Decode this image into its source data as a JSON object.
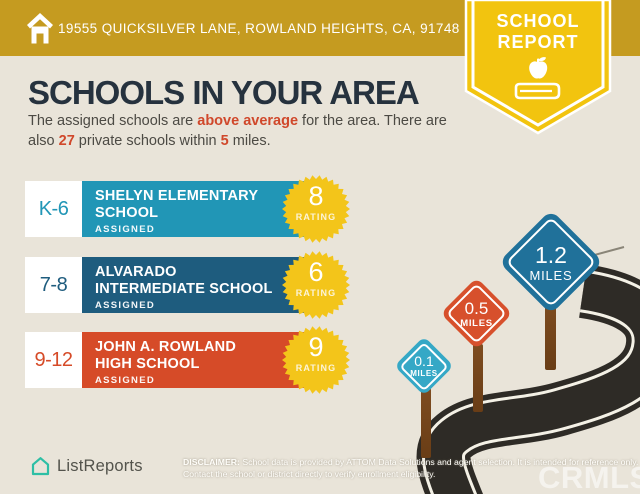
{
  "colors": {
    "header_gold": "#C59B20",
    "badge_yellow": "#F2C40F",
    "page_background": "#E9E4D9",
    "title_navy": "#26323E",
    "body_text": "#4C4A44",
    "accent_red": "#D0482B",
    "rating_star_yellow": "#F3C51A",
    "road_dark": "#2E2B26",
    "post_brown": "#7B4A1F",
    "brand_teal": "#2EBFA5"
  },
  "header": {
    "address": "19555 QUICKSILVER LANE, ROWLAND HEIGHTS, CA, 91748"
  },
  "badge": {
    "line1": "SCHOOL",
    "line2": "REPORT"
  },
  "main": {
    "title": "SCHOOLS IN YOUR AREA",
    "subtitle": {
      "line1": [
        {
          "text": "The assigned schools are ",
          "accent": false
        },
        {
          "text": "above average",
          "accent": true
        },
        {
          "text": " for the area. There are",
          "accent": false
        }
      ],
      "line2": [
        {
          "text": "also ",
          "accent": false
        },
        {
          "text": "27",
          "accent": true
        },
        {
          "text": " private schools within ",
          "accent": false
        },
        {
          "text": "5",
          "accent": true
        },
        {
          "text": " miles.",
          "accent": false
        }
      ]
    }
  },
  "schools": [
    {
      "grade": "K-6",
      "name_line1": "SHELYN ELEMENTARY",
      "name_line2": "SCHOOL",
      "tag": "ASSIGNED",
      "rating": "8",
      "rating_label": "RATING",
      "color": "#2196B6"
    },
    {
      "grade": "7-8",
      "name_line1": "ALVARADO",
      "name_line2": "INTERMEDIATE SCHOOL",
      "tag": "ASSIGNED",
      "rating": "6",
      "rating_label": "RATING",
      "color": "#1E5C7E"
    },
    {
      "grade": "9-12",
      "name_line1": "JOHN A. ROWLAND",
      "name_line2": "HIGH SCHOOL",
      "tag": "ASSIGNED",
      "rating": "9",
      "rating_label": "RATING",
      "color": "#D64B28"
    }
  ],
  "signs": [
    {
      "distance": "0.1",
      "unit": "MILES",
      "color": "#35A8C6"
    },
    {
      "distance": "0.5",
      "unit": "MILES",
      "color": "#D7502C"
    },
    {
      "distance": "1.2",
      "unit": "MILES",
      "color": "#20719A"
    }
  ],
  "footer": {
    "brand": "ListReports",
    "disclaimer_bold": "DISCLAIMER:",
    "disclaimer_rest": " School data is provided by ATTOM Data Solutions and agent selection. It is intended for reference only. Contact the school or district directly to verify enrollment eligibility.",
    "watermark": "CRMLS"
  }
}
